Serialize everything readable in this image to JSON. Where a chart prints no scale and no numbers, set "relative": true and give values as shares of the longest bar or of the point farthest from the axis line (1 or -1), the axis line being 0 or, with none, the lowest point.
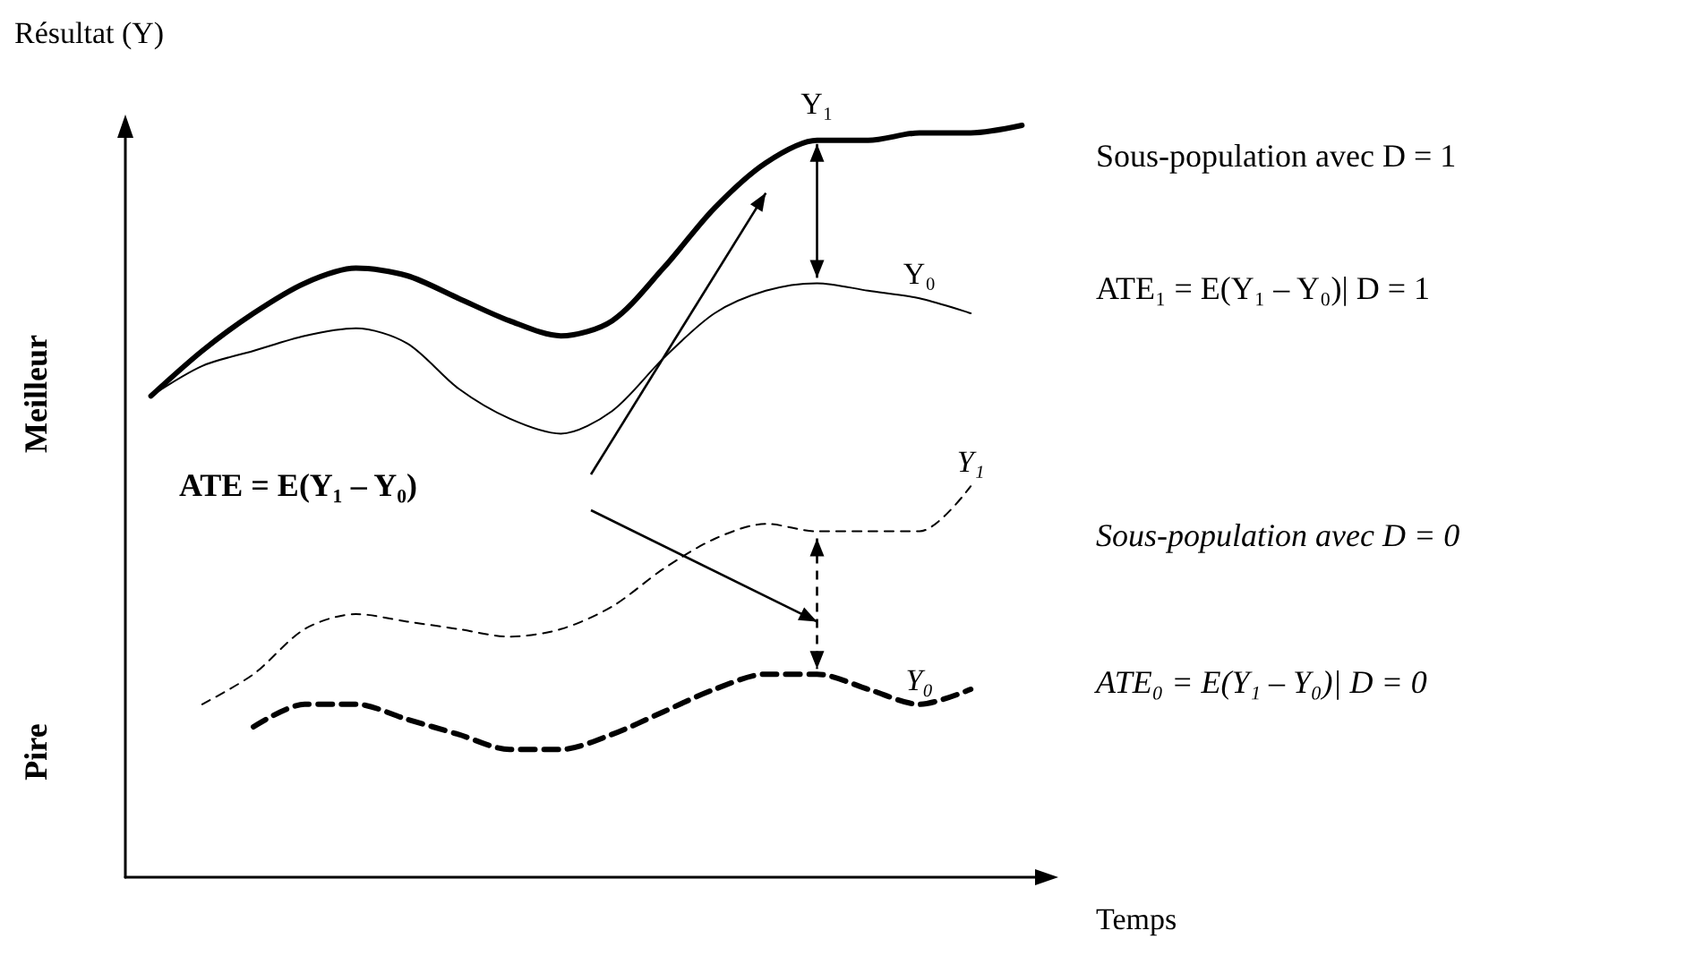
{
  "chart_data": {
    "type": "line",
    "relative": true,
    "xlabel": "Temps",
    "ylabel": "Résultat (Y)",
    "categories": [
      null,
      null,
      null,
      null,
      null,
      null,
      null,
      null,
      null,
      null,
      null,
      null,
      null,
      null,
      null,
      null,
      null,
      null
    ],
    "series": [
      {
        "name": "Y₁",
        "color": "#000000",
        "line_style": "solid",
        "values": [
          0.64,
          0.7,
          0.75,
          0.79,
          0.81,
          0.8,
          0.77,
          0.74,
          0.72,
          0.74,
          0.81,
          0.89,
          0.95,
          0.98,
          0.98,
          0.99,
          0.99,
          1
        ]
      },
      {
        "name": "Y₀",
        "color": "#000000",
        "line_style": "solid",
        "values": [
          0.64,
          0.68,
          0.7,
          0.72,
          0.73,
          0.71,
          0.65,
          0.61,
          0.59,
          0.62,
          0.69,
          0.75,
          0.78,
          0.79,
          0.78,
          0.77,
          0.75,
          null
        ]
      },
      {
        "name": "Y₁",
        "color": "#000000",
        "line_style": "dashed",
        "values": [
          null,
          0.23,
          0.27,
          0.33,
          0.35,
          0.34,
          0.33,
          0.32,
          0.33,
          0.36,
          0.41,
          0.45,
          0.47,
          0.46,
          0.46,
          0.46,
          0.52,
          null
        ]
      },
      {
        "name": "Y₀",
        "color": "#000000",
        "line_style": "dashed",
        "values": [
          null,
          null,
          0.2,
          0.23,
          0.23,
          0.21,
          0.19,
          0.17,
          0.17,
          0.19,
          0.22,
          0.25,
          0.27,
          0.27,
          0.25,
          0.23,
          0.25,
          null
        ]
      }
    ],
    "annotations": [
      "Sous-population avec D = 1",
      "ATE₁ = E(Y₁ – Y₀)| D = 1",
      "Sous-population avec D = 0",
      "ATE₀ = E(Y₁ – Y₀)| D = 0",
      "ATE = E(Y₁ – Y₀)",
      "Meilleur",
      "Pire"
    ],
    "legend": false,
    "grid": false,
    "marker": "none"
  }
}
